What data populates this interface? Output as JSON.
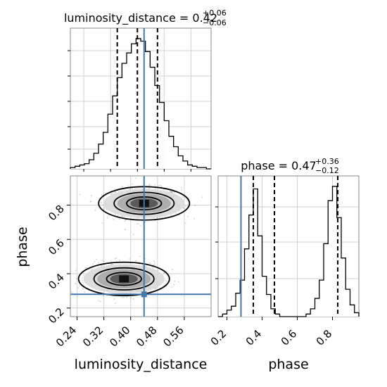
{
  "chart_data": [
    {
      "type": "histogram",
      "panel": "luminosity_distance marginal",
      "title": {
        "param": "luminosity_distance",
        "median": "0.42",
        "upper": "+0.06",
        "lower": "−0.06"
      },
      "xlim": [
        0.22,
        0.64
      ],
      "ylim": [
        0,
        1.0
      ],
      "truth": 0.44,
      "quantiles": [
        0.36,
        0.42,
        0.48
      ],
      "bins": [
        [
          0.22,
          0.01
        ],
        [
          0.234,
          0.02
        ],
        [
          0.248,
          0.03
        ],
        [
          0.262,
          0.04
        ],
        [
          0.276,
          0.07
        ],
        [
          0.29,
          0.12
        ],
        [
          0.304,
          0.19
        ],
        [
          0.318,
          0.28
        ],
        [
          0.332,
          0.42
        ],
        [
          0.346,
          0.56
        ],
        [
          0.36,
          0.7
        ],
        [
          0.374,
          0.81
        ],
        [
          0.388,
          0.89
        ],
        [
          0.402,
          0.96
        ],
        [
          0.416,
          1.0
        ],
        [
          0.43,
          0.98
        ],
        [
          0.444,
          0.9
        ],
        [
          0.458,
          0.78
        ],
        [
          0.472,
          0.64
        ],
        [
          0.486,
          0.51
        ],
        [
          0.5,
          0.37
        ],
        [
          0.514,
          0.25
        ],
        [
          0.528,
          0.17
        ],
        [
          0.542,
          0.1
        ],
        [
          0.556,
          0.06
        ],
        [
          0.57,
          0.03
        ],
        [
          0.584,
          0.02
        ],
        [
          0.598,
          0.01
        ],
        [
          0.612,
          0.01
        ],
        [
          0.626,
          0.0
        ]
      ],
      "grid": true
    },
    {
      "type": "histogram",
      "panel": "phase marginal",
      "title": {
        "param": "phase",
        "median": "0.47",
        "upper": "+0.36",
        "lower": "−0.12"
      },
      "xlim": [
        0.15,
        0.95
      ],
      "ylim": [
        0,
        1.0
      ],
      "truth": 0.28,
      "quantiles": [
        0.35,
        0.47,
        0.83
      ],
      "bins": [
        [
          0.15,
          0.0
        ],
        [
          0.175,
          0.02
        ],
        [
          0.2,
          0.05
        ],
        [
          0.225,
          0.08
        ],
        [
          0.25,
          0.18
        ],
        [
          0.275,
          0.28
        ],
        [
          0.3,
          0.52
        ],
        [
          0.325,
          0.78
        ],
        [
          0.35,
          0.98
        ],
        [
          0.375,
          0.62
        ],
        [
          0.4,
          0.31
        ],
        [
          0.425,
          0.17
        ],
        [
          0.45,
          0.06
        ],
        [
          0.475,
          0.02
        ],
        [
          0.5,
          0.0
        ],
        [
          0.525,
          0.0
        ],
        [
          0.55,
          0.0
        ],
        [
          0.575,
          0.0
        ],
        [
          0.6,
          0.0
        ],
        [
          0.625,
          0.0
        ],
        [
          0.65,
          0.02
        ],
        [
          0.675,
          0.06
        ],
        [
          0.7,
          0.14
        ],
        [
          0.725,
          0.28
        ],
        [
          0.75,
          0.56
        ],
        [
          0.775,
          0.89
        ],
        [
          0.8,
          1.0
        ],
        [
          0.825,
          0.76
        ],
        [
          0.85,
          0.45
        ],
        [
          0.875,
          0.21
        ],
        [
          0.9,
          0.09
        ],
        [
          0.925,
          0.03
        ]
      ],
      "grid": true
    },
    {
      "type": "scatter",
      "panel": "2D posterior",
      "xlabel": "luminosity_distance",
      "ylabel": "phase",
      "xlim": [
        0.22,
        0.64
      ],
      "ylim": [
        0.15,
        0.97
      ],
      "x_ticks": [
        "0.24",
        "0.32",
        "0.40",
        "0.48",
        "0.56"
      ],
      "x_tick_values": [
        0.24,
        0.32,
        0.4,
        0.48,
        0.56
      ],
      "y_ticks": [
        "0.2",
        "0.4",
        "0.6",
        "0.8"
      ],
      "y_tick_values": [
        0.2,
        0.4,
        0.6,
        0.8
      ],
      "truth": [
        0.44,
        0.28
      ],
      "modes": [
        {
          "center": [
            0.44,
            0.81
          ],
          "spread": [
            0.055,
            0.045
          ]
        },
        {
          "center": [
            0.38,
            0.37
          ],
          "spread": [
            0.055,
            0.045
          ]
        }
      ],
      "contour_levels": [
        1.0,
        2.0,
        3.0
      ],
      "grid": true
    },
    {
      "type": "axis",
      "panel": "phase marginal x-axis",
      "xlabel": "phase",
      "x_ticks": [
        "0.2",
        "0.4",
        "0.6",
        "0.8"
      ],
      "x_tick_values": [
        0.2,
        0.4,
        0.6,
        0.8
      ]
    }
  ],
  "colors": {
    "truth": "#4477aa",
    "hist": "#000000",
    "grid": "#d0d0d0",
    "scatter": "#8a8a8a"
  }
}
